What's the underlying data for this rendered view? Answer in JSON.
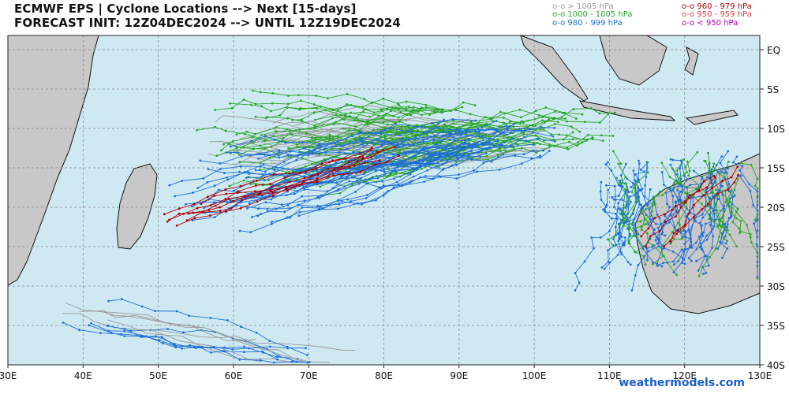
{
  "header": {
    "title_line1": "ECMWF EPS | Cyclone Locations --> Next [15-days]",
    "title_line2": "FORECAST INIT: 12Z04DEC2024 --> UNTIL 12Z19DEC2024"
  },
  "legend": [
    {
      "label": "o-o > 1005 hPa",
      "color": "#9a9a9a"
    },
    {
      "label": "o-o 1000 - 1005 hPa",
      "color": "#2aa52a"
    },
    {
      "label": "o-o 980 - 999 hPa",
      "color": "#1f6fd6"
    },
    {
      "label": "o-o 960 - 979 hPa",
      "color": "#b00000"
    },
    {
      "label": "o-o 950 - 959 hPa",
      "color": "#d04040"
    },
    {
      "label": "o-o < 950 hPa",
      "color": "#b000b0"
    }
  ],
  "map": {
    "lon_ticks": [
      "30E",
      "40E",
      "50E",
      "60E",
      "70E",
      "80E",
      "90E",
      "100E",
      "110E",
      "120E",
      "130E"
    ],
    "lat_ticks": [
      "EQ",
      "5S",
      "10S",
      "15S",
      "20S",
      "25S",
      "30S",
      "35S",
      "40S"
    ],
    "ocean_color": "#cfe9f2",
    "land_color": "#c8c8c8",
    "grid": true
  },
  "watermark": "weathermodels.com"
}
